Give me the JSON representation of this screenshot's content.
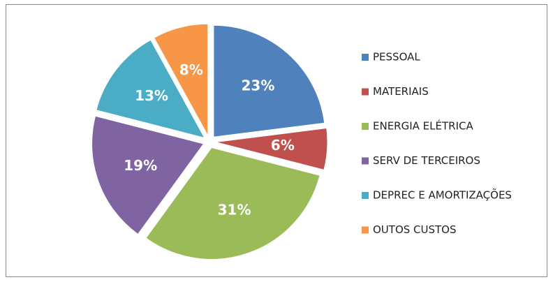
{
  "chart_data": {
    "type": "pie",
    "categories": [
      "PESSOAL",
      "MATERIAIS",
      "ENERGIA ELÉTRICA",
      "SERV DE TERCEIROS",
      "DEPREC E AMORTIZAÇÕES",
      "OUTOS CUSTOS"
    ],
    "values": [
      23,
      6,
      31,
      19,
      13,
      8
    ],
    "value_labels": [
      "23%",
      "6%",
      "31%",
      "19%",
      "13%",
      "8%"
    ],
    "colors": [
      "#4f81bd",
      "#c0504d",
      "#9bbb59",
      "#8064a2",
      "#4bacc6",
      "#f79646"
    ],
    "legend": "right"
  }
}
